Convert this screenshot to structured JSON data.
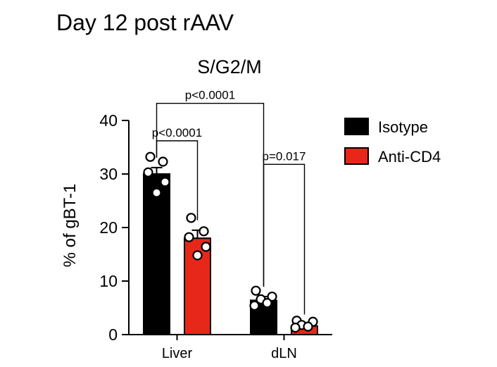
{
  "page_title": "Day 12 post rAAV",
  "chart_data": {
    "type": "bar",
    "title": "S/G2/M",
    "xlabel": "",
    "ylabel": "% of gBT-1",
    "ylim": [
      0,
      40
    ],
    "yticks": [
      0,
      10,
      20,
      30,
      40
    ],
    "categories": [
      "Liver",
      "dLN"
    ],
    "series": [
      {
        "name": "Isotype",
        "color": "#000000",
        "values": [
          30.0,
          6.4
        ],
        "sem": [
          1.2,
          0.7
        ],
        "points": [
          [
            33.2,
            32.3,
            30.3,
            28.5,
            26.5
          ],
          [
            8.2,
            7.1,
            6.6,
            5.9,
            5.4
          ]
        ]
      },
      {
        "name": "Anti-CD4",
        "color": "#e8271b",
        "values": [
          18.0,
          1.6
        ],
        "sem": [
          1.5,
          0.3
        ],
        "points": [
          [
            21.8,
            19.3,
            18.2,
            16.4,
            14.8
          ],
          [
            2.6,
            2.4,
            1.8,
            1.5,
            1.3
          ]
        ]
      }
    ],
    "annotations": [
      {
        "label": "p<0.0001",
        "from": [
          0,
          0
        ],
        "to": [
          0,
          1
        ],
        "y": 36.2
      },
      {
        "label": "p<0.0001",
        "from": [
          0,
          0
        ],
        "to": [
          1,
          0
        ],
        "y": 43.2
      },
      {
        "label": "p=0.017",
        "from": [
          1,
          0
        ],
        "to": [
          1,
          1
        ],
        "y": 31.8
      }
    ],
    "legend_position": "top-right"
  }
}
